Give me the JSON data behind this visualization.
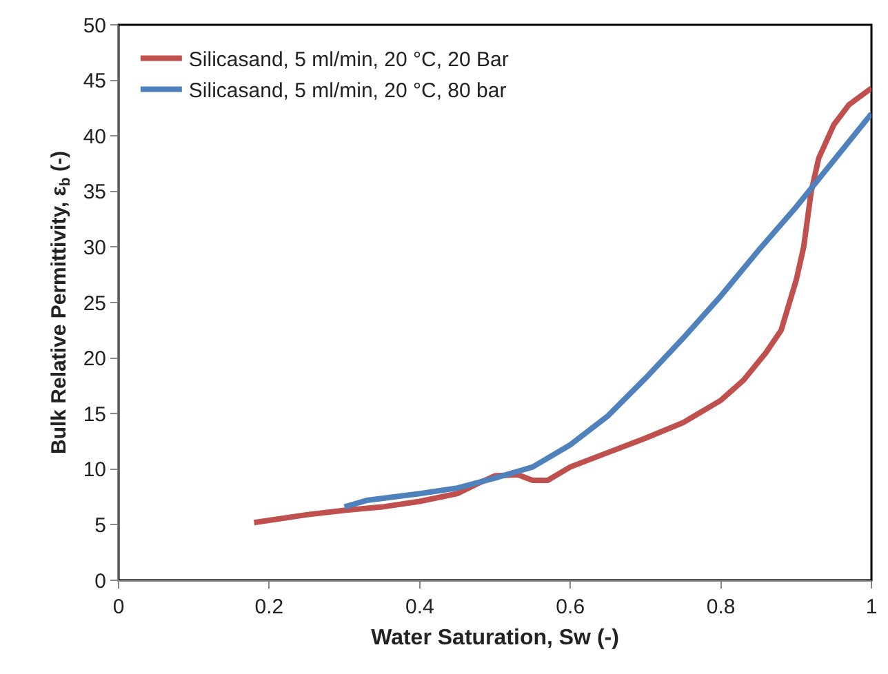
{
  "chart_data": {
    "type": "line",
    "xlabel": "Water Saturation, Sw (-)",
    "ylabel": "Bulk Relative Permittivity, ε$_{b}$ (-)",
    "xlim": [
      0,
      1
    ],
    "xticks": [
      0,
      0.2,
      0.4,
      0.6,
      0.8,
      1
    ],
    "ylim": [
      0,
      50
    ],
    "yticks": [
      0,
      5,
      10,
      15,
      20,
      25,
      30,
      35,
      40,
      45,
      50
    ],
    "grid": false,
    "legend": "top left",
    "marker": "none",
    "line_style": "solid",
    "series": [
      {
        "name": "Silicasand, 5 ml/min, 20 °C, 20 Bar",
        "color": "#c0504d",
        "x": [
          0.18,
          0.2,
          0.25,
          0.3,
          0.35,
          0.4,
          0.45,
          0.48,
          0.5,
          0.53,
          0.55,
          0.57,
          0.6,
          0.65,
          0.7,
          0.75,
          0.8,
          0.83,
          0.86,
          0.88,
          0.9,
          0.91,
          0.92,
          0.93,
          0.95,
          0.97,
          1.0
        ],
        "values": [
          5.2,
          5.4,
          5.9,
          6.3,
          6.6,
          7.1,
          7.8,
          8.8,
          9.4,
          9.5,
          9.0,
          9.0,
          10.2,
          11.5,
          12.8,
          14.2,
          16.2,
          18.0,
          20.5,
          22.5,
          27,
          30,
          35,
          38,
          41,
          42.8,
          44.3
        ]
      },
      {
        "name": "Silicasand, 5 ml/min, 20 °C, 80 bar",
        "color": "#4f81bd",
        "x": [
          0.3,
          0.33,
          0.4,
          0.45,
          0.5,
          0.55,
          0.6,
          0.65,
          0.7,
          0.75,
          0.8,
          0.85,
          0.9,
          0.95,
          1.0
        ],
        "values": [
          6.6,
          7.2,
          7.8,
          8.3,
          9.2,
          10.2,
          12.2,
          14.8,
          18.2,
          21.8,
          25.6,
          29.7,
          33.6,
          37.8,
          42
        ]
      }
    ]
  }
}
